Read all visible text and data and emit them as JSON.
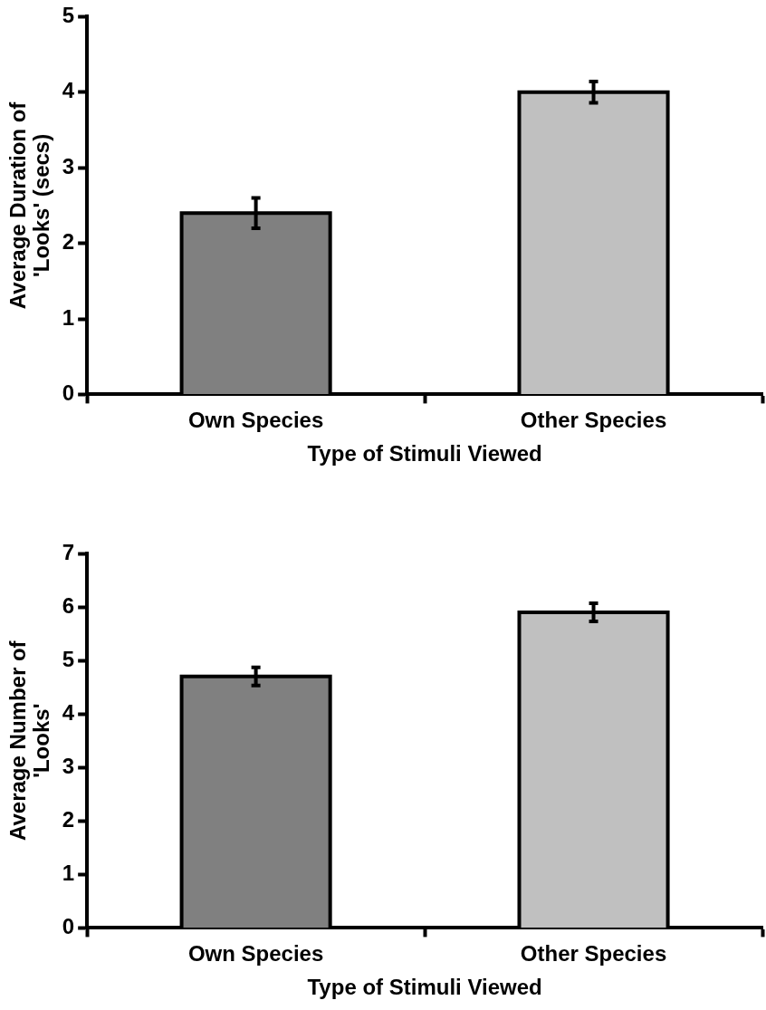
{
  "chart_data": [
    {
      "type": "bar",
      "categories": [
        "Own Species",
        "Other Species"
      ],
      "values": [
        2.4,
        4.0
      ],
      "colors": [
        "#808080",
        "#c0c0c0"
      ],
      "errors": [
        0.2,
        0.14
      ],
      "ylim": [
        0,
        5
      ],
      "yticks": [
        0,
        1,
        2,
        3,
        4,
        5
      ],
      "xlabel": "Type of Stimuli Viewed",
      "ylabel": "Average Duration of 'Looks' (secs)",
      "grid": false,
      "legend": false
    },
    {
      "type": "bar",
      "categories": [
        "Own Species",
        "Other Species"
      ],
      "values": [
        4.7,
        5.9
      ],
      "colors": [
        "#808080",
        "#c0c0c0"
      ],
      "errors": [
        0.17,
        0.17
      ],
      "ylim": [
        0,
        7
      ],
      "yticks": [
        0,
        1,
        2,
        3,
        4,
        5,
        6,
        7
      ],
      "xlabel": "Type of Stimuli Viewed",
      "ylabel": "Average Number of 'Looks'",
      "grid": false,
      "legend": false
    }
  ]
}
